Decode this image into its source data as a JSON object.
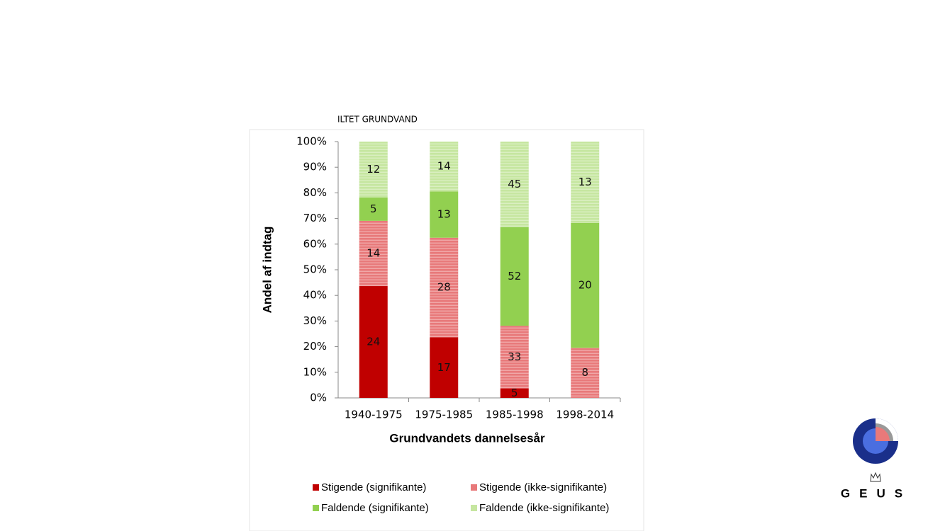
{
  "chart_data": {
    "type": "stacked_percent_bar",
    "title": "ILTET GRUNDVAND",
    "ylabel": "Andel af indtag",
    "xlabel": "Grundvandets dannelsesår",
    "categories": [
      "1940-1975",
      "1975-1985",
      "1985-1998",
      "1998-2014"
    ],
    "series": [
      {
        "name": "Stigende (signifikante)",
        "color": "#c00000",
        "hatch": false,
        "values": [
          24,
          17,
          5,
          0
        ]
      },
      {
        "name": "Stigende (ikke-signifikante)",
        "color": "#e8797a",
        "hatch": true,
        "values": [
          14,
          28,
          33,
          8
        ]
      },
      {
        "name": "Faldende (signifikante)",
        "color": "#92d050",
        "hatch": false,
        "values": [
          5,
          13,
          52,
          20
        ]
      },
      {
        "name": "Faldende (ikke-signifikante)",
        "color": "#c6e6a0",
        "hatch": true,
        "values": [
          12,
          14,
          45,
          13
        ]
      }
    ],
    "ylim": [
      0,
      100
    ],
    "yticks": [
      {
        "value": 0,
        "label": "0%"
      },
      {
        "value": 10,
        "label": "10%"
      },
      {
        "value": 20,
        "label": "20%"
      },
      {
        "value": 30,
        "label": "30%"
      },
      {
        "value": 40,
        "label": "40%"
      },
      {
        "value": 50,
        "label": "50%"
      },
      {
        "value": 60,
        "label": "60%"
      },
      {
        "value": 70,
        "label": "70%"
      },
      {
        "value": 80,
        "label": "80%"
      },
      {
        "value": 90,
        "label": "90%"
      },
      {
        "value": 100,
        "label": "100%"
      }
    ],
    "legend": "bottom"
  },
  "logo": {
    "text": "GEUS"
  }
}
